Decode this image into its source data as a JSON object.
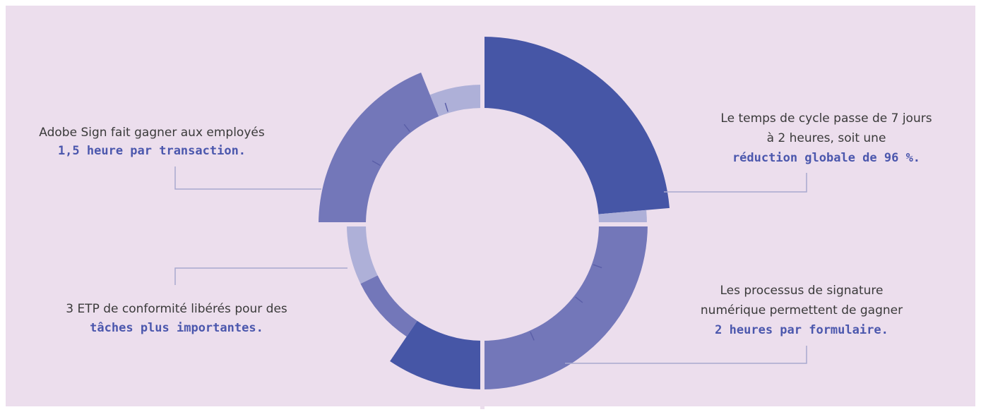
{
  "callouts": [
    {
      "lines": [
        "Le temps de cycle passe de 7 jours",
        "à 2 heures, soit une"
      ],
      "highlight": "réduction globale de 96 %."
    },
    {
      "lines": [
        "Adobe Sign fait gagner aux employés"
      ],
      "highlight": "1,5 heure par transaction."
    },
    {
      "lines": [
        "3 ETP de conformité libérés pour des"
      ],
      "highlight": "tâches plus importantes."
    },
    {
      "lines": [
        "Les processus de signature",
        "numérique permettent de gagner"
      ],
      "highlight": "2 heures par formulaire."
    }
  ]
}
